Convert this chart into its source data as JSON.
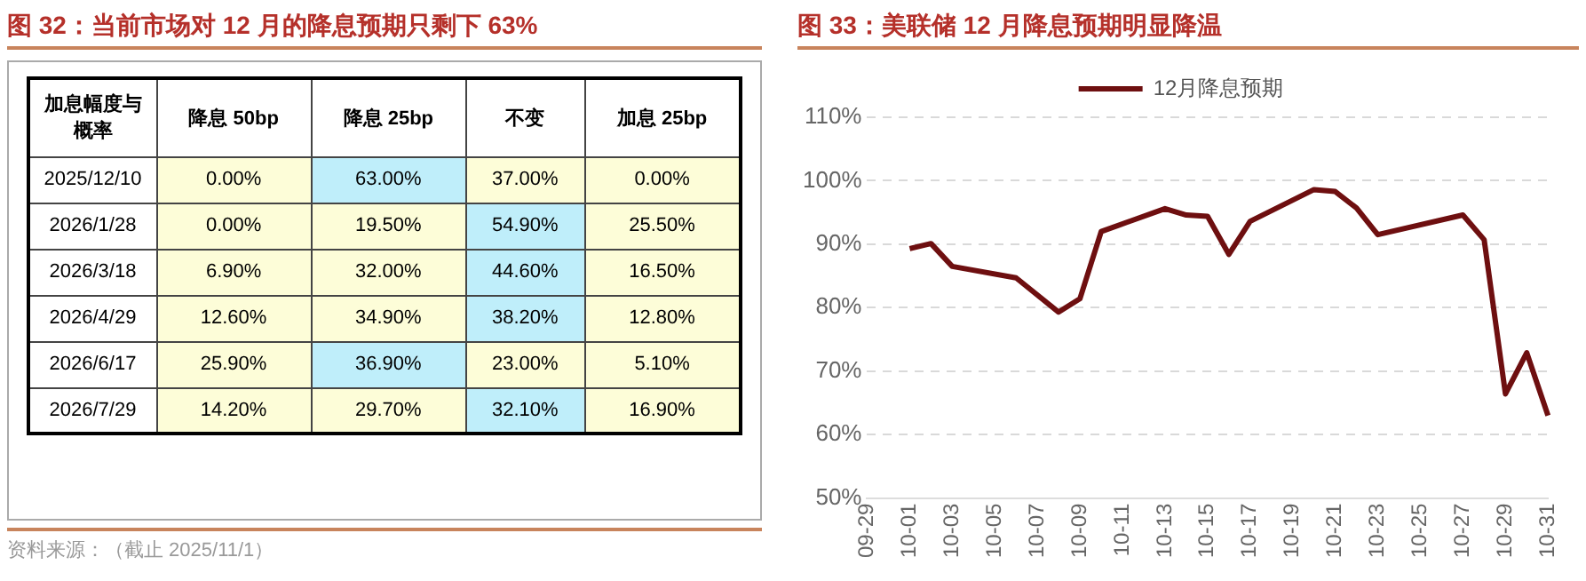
{
  "chart_data": [
    {
      "type": "heatmap",
      "title": "图 32：当前市场对 12 月的降息预期只剩下 63%",
      "ylabel": "加息幅度与概率",
      "categories": [
        "降息 50bp",
        "降息 25bp",
        "不变",
        "加息 25bp"
      ],
      "y_categories": [
        "2025/12/10",
        "2026/1/28",
        "2026/3/18",
        "2026/4/29",
        "2026/6/17",
        "2026/7/29"
      ],
      "cells": [
        [
          0,
          63,
          37,
          0
        ],
        [
          0,
          19.5,
          54.9,
          25.5
        ],
        [
          6.9,
          32,
          44.6,
          16.5
        ],
        [
          12.6,
          34.9,
          38.2,
          12.8
        ],
        [
          25.9,
          36.9,
          23,
          5.1
        ],
        [
          14.2,
          29.7,
          32.1,
          16.9
        ]
      ],
      "cell_labels": [
        [
          "0.00%",
          "63.00%",
          "37.00%",
          "0.00%"
        ],
        [
          "0.00%",
          "19.50%",
          "54.90%",
          "25.50%"
        ],
        [
          "6.90%",
          "32.00%",
          "44.60%",
          "16.50%"
        ],
        [
          "12.60%",
          "34.90%",
          "38.20%",
          "12.80%"
        ],
        [
          "25.90%",
          "36.90%",
          "23.00%",
          "5.10%"
        ],
        [
          "14.20%",
          "29.70%",
          "32.10%",
          "16.90%"
        ]
      ],
      "colors": [
        "#fdfdd8",
        "#bfeefa"
      ],
      "annotations": [
        "资料来源：（截止 2025/11/1）"
      ]
    },
    {
      "type": "line",
      "title": "图 33：美联储 12 月降息预期明显降温",
      "categories": [
        "09-29",
        null,
        "10-01",
        null,
        "10-03",
        null,
        "10-05",
        null,
        "10-07",
        null,
        "10-09",
        null,
        "10-11",
        null,
        "10-13",
        null,
        "10-15",
        null,
        "10-17",
        null,
        "10-19",
        null,
        "10-21",
        null,
        "10-23",
        null,
        "10-25",
        null,
        "10-27",
        null,
        "10-29",
        null,
        "10-31"
      ],
      "series": [
        {
          "name": "12月降息预期",
          "color": "#6e0f10",
          "values": [
            null,
            null,
            89.3,
            90.1,
            86.5,
            null,
            null,
            84.7,
            null,
            79.3,
            81.4,
            92.0,
            null,
            null,
            95.6,
            94.6,
            94.4,
            88.4,
            93.6,
            null,
            null,
            98.6,
            98.3,
            95.7,
            91.5,
            null,
            null,
            null,
            94.6,
            90.7,
            66.4,
            72.9,
            63.0
          ]
        }
      ],
      "ylim": [
        50,
        110
      ],
      "yticks": [
        {
          "value": 50,
          "label": "50%"
        },
        {
          "value": 60,
          "label": "60%"
        },
        {
          "value": 70,
          "label": "70%"
        },
        {
          "value": 80,
          "label": "80%"
        },
        {
          "value": 90,
          "label": "90%"
        },
        {
          "value": 100,
          "label": "100%"
        },
        {
          "value": 110,
          "label": "110%"
        }
      ],
      "grid": "y",
      "legend": "top",
      "marker": "none",
      "line_style": "solid"
    }
  ]
}
